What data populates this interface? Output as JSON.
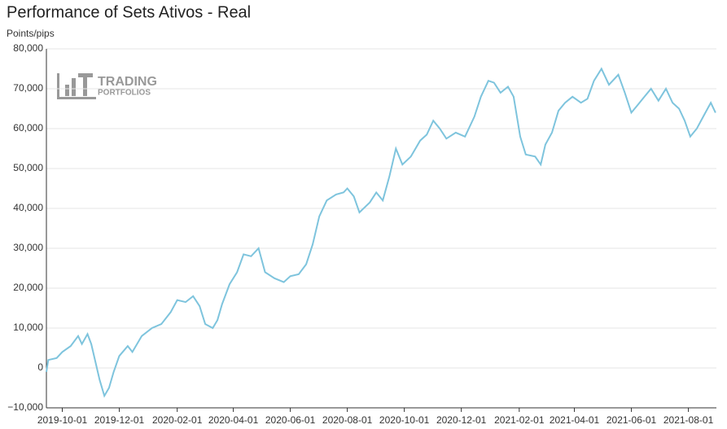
{
  "chart_data": {
    "type": "line",
    "title": "Performance of Sets Ativos - Real",
    "y_label": "Points/pips",
    "watermark": [
      "TRADING",
      "PORTFOLIOS"
    ],
    "xlim": [
      "2019-09-14",
      "2021-08-31"
    ],
    "xticks": [
      "2019-10-01",
      "2019-12-01",
      "2020-02-01",
      "2020-04-01",
      "2020-06-01",
      "2020-08-01",
      "2020-10-01",
      "2020-12-01",
      "2021-02-01",
      "2021-04-01",
      "2021-06-01",
      "2021-08-01"
    ],
    "ylim": [
      -10000,
      80000
    ],
    "yticks": [
      {
        "value": -10000,
        "label": "−10,000"
      },
      0,
      {
        "value": 10000,
        "label": "10,000"
      },
      {
        "value": 20000,
        "label": "20,000"
      },
      {
        "value": 30000,
        "label": "30,000"
      },
      {
        "value": 40000,
        "label": "40,000"
      },
      {
        "value": 50000,
        "label": "50,000"
      },
      {
        "value": 60000,
        "label": "60,000"
      },
      {
        "value": 70000,
        "label": "70,000"
      },
      {
        "value": 80000,
        "label": "80,000"
      }
    ],
    "grid": true,
    "series": [
      {
        "name": "Real",
        "color": "#7ec4dd",
        "x": [
          "2019-09-14",
          "2019-09-16",
          "2019-09-25",
          "2019-10-01",
          "2019-10-10",
          "2019-10-18",
          "2019-10-22",
          "2019-10-28",
          "2019-11-01",
          "2019-11-10",
          "2019-11-15",
          "2019-11-20",
          "2019-11-25",
          "2019-12-01",
          "2019-12-10",
          "2019-12-15",
          "2019-12-25",
          "2020-01-05",
          "2020-01-15",
          "2020-01-25",
          "2020-02-01",
          "2020-02-10",
          "2020-02-18",
          "2020-02-25",
          "2020-03-02",
          "2020-03-10",
          "2020-03-15",
          "2020-03-20",
          "2020-03-28",
          "2020-04-05",
          "2020-04-12",
          "2020-04-20",
          "2020-04-28",
          "2020-05-05",
          "2020-05-15",
          "2020-05-25",
          "2020-06-01",
          "2020-06-10",
          "2020-06-18",
          "2020-06-25",
          "2020-07-02",
          "2020-07-10",
          "2020-07-20",
          "2020-07-28",
          "2020-08-01",
          "2020-08-08",
          "2020-08-14",
          "2020-08-25",
          "2020-09-01",
          "2020-09-08",
          "2020-09-15",
          "2020-09-22",
          "2020-09-29",
          "2020-10-08",
          "2020-10-18",
          "2020-10-25",
          "2020-11-01",
          "2020-11-08",
          "2020-11-15",
          "2020-11-25",
          "2020-12-05",
          "2020-12-15",
          "2020-12-22",
          "2020-12-30",
          "2021-01-05",
          "2021-01-12",
          "2021-01-20",
          "2021-01-26",
          "2021-02-02",
          "2021-02-08",
          "2021-02-18",
          "2021-02-24",
          "2021-03-01",
          "2021-03-08",
          "2021-03-15",
          "2021-03-22",
          "2021-03-30",
          "2021-04-08",
          "2021-04-15",
          "2021-04-22",
          "2021-04-30",
          "2021-05-08",
          "2021-05-18",
          "2021-05-25",
          "2021-06-01",
          "2021-06-08",
          "2021-06-15",
          "2021-06-22",
          "2021-06-30",
          "2021-07-08",
          "2021-07-15",
          "2021-07-22",
          "2021-07-28",
          "2021-08-03",
          "2021-08-10",
          "2021-08-18",
          "2021-08-25",
          "2021-08-30"
        ],
        "values": [
          -1000,
          2000,
          2500,
          4000,
          5500,
          8000,
          6000,
          8500,
          6000,
          -3000,
          -7000,
          -5000,
          -1000,
          3000,
          5500,
          4000,
          8000,
          10000,
          11000,
          14000,
          17000,
          16500,
          18000,
          15500,
          11000,
          10000,
          12000,
          16000,
          21000,
          24000,
          28500,
          28000,
          30000,
          24000,
          22500,
          21500,
          23000,
          23500,
          26000,
          31000,
          38000,
          42000,
          43500,
          44000,
          45000,
          43000,
          39000,
          41500,
          44000,
          42000,
          48000,
          55000,
          51000,
          53000,
          57000,
          58500,
          62000,
          60000,
          57500,
          59000,
          58000,
          63000,
          68000,
          72000,
          71500,
          69000,
          70500,
          68000,
          58000,
          53500,
          53000,
          51000,
          56000,
          59000,
          64500,
          66500,
          68000,
          66500,
          67500,
          72000,
          75000,
          71000,
          73500,
          69000,
          64000,
          66000,
          68000,
          70000,
          67000,
          70000,
          66500,
          65000,
          62000,
          58000,
          60000,
          63500,
          66500,
          64000
        ]
      }
    ]
  }
}
